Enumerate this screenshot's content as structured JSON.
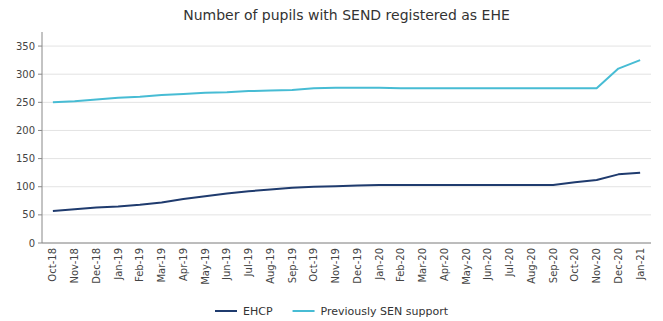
{
  "chart_data": {
    "type": "line",
    "title": "Number of pupils with SEND registered as EHE",
    "categories": [
      "Oct-18",
      "Nov-18",
      "Dec-18",
      "Jan-19",
      "Feb-19",
      "Mar-19",
      "Apr-19",
      "May-19",
      "Jun-19",
      "Jul-19",
      "Aug-19",
      "Sep-19",
      "Oct-19",
      "Nov-19",
      "Dec-19",
      "Jan-20",
      "Feb-20",
      "Mar-20",
      "Apr-20",
      "May-20",
      "Jun-20",
      "Jul-20",
      "Aug-20",
      "Sep-20",
      "Oct-20",
      "Nov-20",
      "Dec-20",
      "Jan-21"
    ],
    "series": [
      {
        "name": "EHCP",
        "color": "#1F3B6E",
        "values": [
          57,
          60,
          63,
          65,
          68,
          72,
          78,
          83,
          88,
          92,
          95,
          98,
          100,
          101,
          102,
          103,
          103,
          103,
          103,
          103,
          103,
          103,
          103,
          103,
          108,
          112,
          122,
          125
        ]
      },
      {
        "name": "Previously SEN support",
        "color": "#47BCD4",
        "values": [
          250,
          252,
          255,
          258,
          260,
          263,
          265,
          267,
          268,
          270,
          271,
          272,
          275,
          276,
          276,
          276,
          275,
          275,
          275,
          275,
          275,
          275,
          275,
          275,
          275,
          275,
          310,
          325
        ]
      }
    ],
    "ylim": [
      0,
      375
    ],
    "yticks": [
      0,
      50,
      100,
      150,
      200,
      250,
      300,
      350
    ],
    "grid": true,
    "legend": "bottom"
  }
}
